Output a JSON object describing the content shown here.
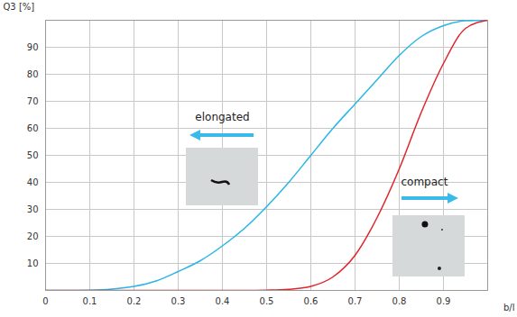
{
  "chart_data": {
    "type": "line",
    "x_label": "b/l",
    "y_label": "Q3 [%]",
    "xlim": [
      0,
      1
    ],
    "ylim": [
      0,
      100
    ],
    "xticks": [
      0,
      0.1,
      0.2,
      0.3,
      0.4,
      0.5,
      0.6,
      0.7,
      0.8,
      0.9
    ],
    "yticks": [
      10,
      20,
      30,
      40,
      50,
      60,
      70,
      80,
      90
    ],
    "grid": true,
    "x": [
      0,
      0.05,
      0.1,
      0.15,
      0.2,
      0.25,
      0.3,
      0.35,
      0.4,
      0.45,
      0.5,
      0.55,
      0.6,
      0.65,
      0.7,
      0.75,
      0.8,
      0.85,
      0.9,
      0.95,
      1
    ],
    "series": [
      {
        "color": "#29b6e6",
        "values": [
          0,
          0,
          0.1,
          0.5,
          1.5,
          3.5,
          7,
          11,
          16.5,
          23,
          31,
          40,
          50,
          60,
          69,
          78,
          87,
          94,
          98,
          99.8,
          100
        ]
      },
      {
        "color": "#e0252b",
        "values": [
          0,
          0,
          0,
          0,
          0,
          0,
          0,
          0,
          0,
          0,
          0.1,
          0.4,
          1.5,
          5,
          13,
          27,
          45,
          66,
          84,
          97,
          100
        ]
      }
    ],
    "annotations": [
      {
        "text": "elongated",
        "x": 0.4,
        "y": 64,
        "arrow": "left"
      },
      {
        "text": "compact",
        "x": 0.857,
        "y": 40,
        "arrow": "right"
      }
    ]
  }
}
